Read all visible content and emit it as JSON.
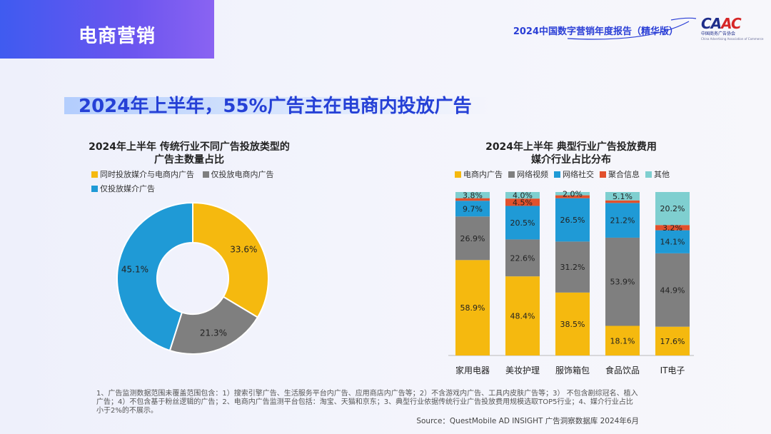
{
  "header": {
    "section_label": "电商营销",
    "report_title": "2024中国数字营销年度报告（精华版）",
    "logo_text_1": "CA",
    "logo_text_2": "AC",
    "logo_sub": "中国商务广告协会",
    "logo_sub_en": "China Advertising Association of Commerce"
  },
  "headline": "2024年上半年，55%广告主在电商内投放广告",
  "colors": {
    "yellow": "#f5b90f",
    "gray": "#7f7f7f",
    "blue": "#1f9ad6",
    "red": "#e2512c",
    "teal": "#7fcfd0",
    "accent": "#2540d6"
  },
  "chart_data": [
    {
      "type": "pie",
      "title_line1": "2024年上半年 传统行业不同广告投放类型的",
      "title_line2": "广告主数量占比",
      "series": [
        {
          "name": "同时投放媒介与电商内广告",
          "value": 33.6,
          "label": "33.6%",
          "color": "#f5b90f"
        },
        {
          "name": "仅投放电商内广告",
          "value": 21.3,
          "label": "21.3%",
          "color": "#7f7f7f"
        },
        {
          "name": "仅投放媒介广告",
          "value": 45.1,
          "label": "45.1%",
          "color": "#1f9ad6"
        }
      ]
    },
    {
      "type": "bar",
      "stacked": true,
      "title_line1": "2024年上半年 典型行业广告投放费用",
      "title_line2": "媒介行业占比分布",
      "categories": [
        "家用电器",
        "美妆护理",
        "服饰箱包",
        "食品饮品",
        "IT电子"
      ],
      "series": [
        {
          "name": "电商内广告",
          "color": "#f5b90f",
          "values": [
            58.9,
            48.4,
            38.5,
            18.1,
            17.6
          ],
          "labels": [
            "58.9%",
            "48.4%",
            "38.5%",
            "18.1%",
            "17.6%"
          ]
        },
        {
          "name": "网络视频",
          "color": "#7f7f7f",
          "values": [
            26.9,
            22.6,
            31.2,
            53.9,
            44.9
          ],
          "labels": [
            "26.9%",
            "22.6%",
            "31.2%",
            "53.9%",
            "44.9%"
          ]
        },
        {
          "name": "网络社交",
          "color": "#1f9ad6",
          "values": [
            9.7,
            20.5,
            26.5,
            21.2,
            14.1
          ],
          "labels": [
            "9.7%",
            "20.5%",
            "26.5%",
            "21.2%",
            "14.1%"
          ]
        },
        {
          "name": "聚合信息",
          "color": "#e2512c",
          "values": [
            1.6,
            4.5,
            1.8,
            1.6,
            3.2
          ],
          "labels": [
            "",
            "4.5%",
            "",
            "",
            "3.2%"
          ]
        },
        {
          "name": "其他",
          "color": "#7fcfd0",
          "values": [
            3.8,
            4.0,
            2.0,
            5.1,
            20.2
          ],
          "labels": [
            "3.8%",
            "4.0%",
            "2.0%",
            "5.1%",
            "20.2%"
          ]
        }
      ],
      "ylim": [
        0,
        100
      ]
    }
  ],
  "footnote": "1、广告监测数据范围未覆盖范围包含：1）搜索引擎广告、生活服务平台内广告、应用商店内广告等；2）不含游戏内广告、工具内皮肤广告等；3） 不包含剧综冠名、植入广告；4）不包含基于粉丝逻辑的广告；2、电商内广告监测平台包括：淘宝、天猫和京东；3、典型行业依据传统行业广告投放费用规模选取TOP5行业；4、媒介行业占比小于2%的不展示。",
  "source": "Source：QuestMobile AD INSIGHT 广告洞察数据库 2024年6月"
}
